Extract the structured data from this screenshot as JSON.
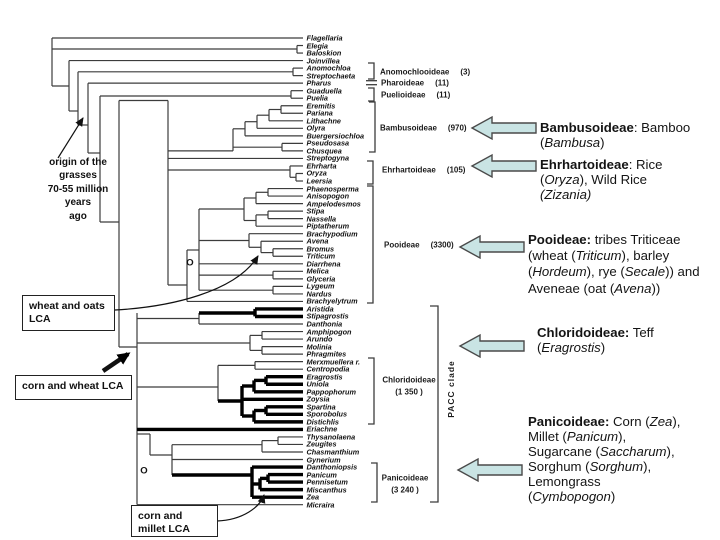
{
  "figure": {
    "kind": "grass-phylogeny-cladogram"
  },
  "taxa": [
    "Flagellaria",
    "Elegia",
    "Baloskion",
    "Joinvillea",
    "Anomochloa",
    "Streptochaeta",
    "Pharus",
    "Guaduella",
    "Puelia",
    "Eremitis",
    "Pariana",
    "Lithachne",
    "Olyra",
    "Buergersiochloa",
    "Pseudosasa",
    "Chusquea",
    "Streptogyna",
    "Ehrharta",
    "Oryza",
    "Leersia",
    "Phaenosperma",
    "Anisopogon",
    "Ampelodesmos",
    "Stipa",
    "Nassella",
    "Piptatherum",
    "Brachypodium",
    "Avena",
    "Bromus",
    "Triticum",
    "Diarrhena",
    "Melica",
    "Glyceria",
    "Lygeum",
    "Nardus",
    "Brachyelytrum",
    "Aristida",
    "Stipagrostis",
    "Danthonia",
    "Amphipogon",
    "Arundo",
    "Molinia",
    "Phragmites",
    "Merxmuellera r.",
    "Centropodia",
    "Eragrostis",
    "Uniola",
    "Pappophorum",
    "Zoysia",
    "Spartina",
    "Sporobolus",
    "Distichlis",
    "Eriachne",
    "Thysanolaena",
    "Zeugites",
    "Chasmanthium",
    "Gynerium",
    "Danthoniopsis",
    "Panicum",
    "Pennisetum",
    "Miscanthus",
    "Zea",
    "Micraira"
  ],
  "bold_lineage_taxa": [
    "Aristida",
    "Stipagrostis",
    "Eragrostis",
    "Uniola",
    "Pappophorum",
    "Zoysia",
    "Spartina",
    "Sporobolus",
    "Distichlis",
    "Eriachne",
    "Danthoniopsis",
    "Panicum",
    "Pennisetum",
    "Miscanthus",
    "Zea"
  ],
  "clades": [
    {
      "name": "Anomochlooideae",
      "count": "(3)"
    },
    {
      "name": "Pharoideae",
      "count": "(11)"
    },
    {
      "name": "Puelioideae",
      "count": "(11)"
    },
    {
      "name": "Bambusoideae",
      "count": "(970)"
    },
    {
      "name": "Ehrhartoideae",
      "count": "(105)"
    },
    {
      "name": "Pooideae",
      "count": "(3300)"
    },
    {
      "name": "Chloridoideae",
      "count": "(1 350 )"
    },
    {
      "name": "Panicoideae",
      "count": "(3 240 )"
    }
  ],
  "pacc_label": "PACC  clade",
  "node_markers": [
    "O",
    "O"
  ],
  "origin_note_lines": [
    "origin  of  the",
    "grasses",
    "70-55 million",
    "years",
    "ago"
  ],
  "lca_boxes": [
    {
      "lines": [
        "wheat and oats",
        "LCA"
      ]
    },
    {
      "lines": [
        "corn and wheat LCA"
      ]
    },
    {
      "lines": [
        "corn and",
        "millet LCA"
      ]
    }
  ],
  "annotations": [
    {
      "id": "bambusoideae-note",
      "lines": [
        [
          {
            "b": 1,
            "t": "Bambusoideae"
          },
          {
            "t": ": Bamboo"
          }
        ],
        [
          {
            "t": "("
          },
          {
            "i": 1,
            "t": "Bambusa"
          },
          {
            "t": ")"
          }
        ]
      ]
    },
    {
      "id": "ehrhartoideae-note",
      "lines": [
        [
          {
            "b": 1,
            "t": "Ehrhartoideae"
          },
          {
            "t": ": Rice"
          }
        ],
        [
          {
            "t": "("
          },
          {
            "i": 1,
            "t": "Oryza"
          },
          {
            "t": "), Wild Rice"
          }
        ],
        [
          {
            "i": 1,
            "t": "(Zizania)"
          }
        ]
      ]
    },
    {
      "id": "pooideae-note",
      "lines": [
        [
          {
            "b": 1,
            "t": "Pooideae:"
          },
          {
            "t": " tribes Triticeae"
          }
        ],
        [
          {
            "t": "(wheat ("
          },
          {
            "i": 1,
            "t": "Triticum"
          },
          {
            "t": "), barley"
          }
        ],
        [
          {
            "t": "("
          },
          {
            "i": 1,
            "t": "Hordeum"
          },
          {
            "t": "), rye ("
          },
          {
            "i": 1,
            "t": "Secale"
          },
          {
            "t": ")) and"
          }
        ],
        [
          {
            "t": "Aveneae (oat ("
          },
          {
            "i": 1,
            "t": "Avena"
          },
          {
            "t": "))"
          }
        ]
      ]
    },
    {
      "id": "chloridoideae-note",
      "lines": [
        [
          {
            "b": 1,
            "t": "Chloridoideae:"
          },
          {
            "t": " Teff"
          }
        ],
        [
          {
            "t": "("
          },
          {
            "i": 1,
            "t": "Eragrostis"
          },
          {
            "t": ")"
          }
        ]
      ]
    },
    {
      "id": "panicoideae-note",
      "lines": [
        [
          {
            "b": 1,
            "t": "Panicoideae:"
          },
          {
            "t": " Corn ("
          },
          {
            "i": 1,
            "t": "Zea"
          },
          {
            "t": "),"
          }
        ],
        [
          {
            "t": "Millet ("
          },
          {
            "i": 1,
            "t": "Panicum"
          },
          {
            "t": "),"
          }
        ],
        [
          {
            "t": "Sugarcane ("
          },
          {
            "i": 1,
            "t": "Saccharum"
          },
          {
            "t": "),"
          }
        ],
        [
          {
            "t": "Sorghum ("
          },
          {
            "i": 1,
            "t": "Sorghum"
          },
          {
            "t": "),"
          }
        ],
        [
          {
            "t": "Lemongrass"
          }
        ],
        [
          {
            "t": "("
          },
          {
            "i": 1,
            "t": "Cymbopogon"
          },
          {
            "t": ")"
          }
        ]
      ]
    }
  ],
  "colors": {
    "line": "#3c3c3c",
    "bold_line": "#000000",
    "arrow_fill": "#c9e4e4",
    "arrow_border": "#4a4a4a"
  }
}
